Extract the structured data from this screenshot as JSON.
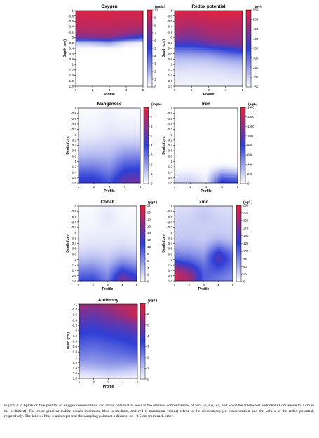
{
  "colors": {
    "low": "#ffffff",
    "mid": "#2f3fd6",
    "high": "#e8213a"
  },
  "caption": "Figure 3. 2D-plots of five profiles of oxygen concentration and redox potential as well as the element concentrations of Mn, Fe, Co, Zn, and Sb of the freshwater sediment (1 cm above to 2 cm in the sediment). The color gradient (white equals minimum, blue is medium, and red is maximum values) refers to the element/oxygen concentration and the values of the redox potential, respectively. The labels of the x-axis represent the sampling points at a distance of ~0.5 cm from each other.",
  "chart_data": [
    {
      "type": "heatmap",
      "title": "Oxygen",
      "xlabel": "Profile",
      "ylabel": "Depth (cm)",
      "unit": "(mg/L)",
      "x": [
        1,
        2,
        3,
        4,
        5
      ],
      "y": [
        -1,
        -0.8,
        -0.6,
        -0.4,
        -0.2,
        0,
        0.2,
        0.4,
        0.6,
        0.8,
        1,
        1.2,
        1.4,
        1.6,
        1.8
      ],
      "xlim": [
        1,
        5
      ],
      "ylim": [
        -1,
        1.8
      ],
      "colorbar_ticks": [
        0,
        1,
        2,
        3,
        4,
        5,
        6,
        7,
        8,
        9,
        10
      ],
      "clim": [
        0,
        10
      ],
      "values": [
        [
          9.5,
          9.6,
          9.5,
          9.4,
          9.5
        ],
        [
          9.3,
          9.4,
          9.4,
          9.2,
          9.3
        ],
        [
          9,
          9.1,
          9.1,
          9,
          9
        ],
        [
          8.8,
          8.8,
          8.8,
          8.6,
          8.5
        ],
        [
          8.2,
          8.3,
          8.5,
          8,
          7.6
        ],
        [
          7,
          7.2,
          7.4,
          6.2,
          4.6
        ],
        [
          1.5,
          1.8,
          2.5,
          0.8,
          0.4
        ],
        [
          0.1,
          0.1,
          0.2,
          0,
          0
        ],
        [
          0,
          0,
          0,
          0,
          0
        ],
        [
          0,
          0,
          0,
          0,
          0
        ],
        [
          0,
          0,
          0,
          0,
          0
        ],
        [
          0,
          0,
          0,
          0,
          0
        ],
        [
          0,
          0,
          0,
          0,
          0
        ],
        [
          0,
          0,
          0,
          0,
          0
        ],
        [
          0,
          0,
          0,
          0,
          0
        ]
      ]
    },
    {
      "type": "heatmap",
      "title": "Redox potential",
      "xlabel": "Profile",
      "ylabel": "Depth (cm)",
      "unit": "(mV)",
      "x": [
        1,
        2,
        3,
        4,
        5
      ],
      "y": [
        -1,
        -0.8,
        -0.6,
        -0.4,
        -0.2,
        0,
        0.2,
        0.4,
        0.6,
        0.8,
        1,
        1.2,
        1.4,
        1.6,
        1.8
      ],
      "xlim": [
        1,
        5
      ],
      "ylim": [
        -1,
        1.8
      ],
      "colorbar_ticks": [
        150,
        200,
        250,
        300,
        350,
        400,
        450,
        500,
        550
      ],
      "clim": [
        150,
        550
      ],
      "values": [
        [
          540,
          535,
          540,
          545,
          540
        ],
        [
          520,
          515,
          525,
          530,
          525
        ],
        [
          505,
          500,
          510,
          510,
          505
        ],
        [
          490,
          480,
          495,
          500,
          495
        ],
        [
          470,
          455,
          480,
          485,
          480
        ],
        [
          440,
          430,
          460,
          470,
          465
        ],
        [
          390,
          380,
          420,
          440,
          450
        ],
        [
          320,
          320,
          340,
          360,
          390
        ],
        [
          260,
          260,
          270,
          300,
          320
        ],
        [
          220,
          220,
          225,
          245,
          260
        ],
        [
          200,
          195,
          200,
          210,
          225
        ],
        [
          185,
          182,
          185,
          190,
          200
        ],
        [
          175,
          172,
          175,
          178,
          185
        ],
        [
          168,
          166,
          168,
          170,
          175
        ],
        [
          162,
          160,
          162,
          165,
          168
        ]
      ]
    },
    {
      "type": "heatmap",
      "title": "Manganese",
      "xlabel": "Profile",
      "ylabel": "Depth (cm)",
      "unit": "(mg/L)",
      "x": [
        1,
        2,
        3,
        4,
        5
      ],
      "y": [
        -1,
        -0.8,
        -0.6,
        -0.4,
        -0.2,
        0,
        0.2,
        0.4,
        0.6,
        0.8,
        1,
        1.2,
        1.4,
        1.6,
        1.8
      ],
      "xlim": [
        1,
        5
      ],
      "ylim": [
        -1,
        1.8
      ],
      "colorbar_ticks": [
        0,
        1,
        2,
        3,
        4,
        5,
        6,
        7,
        8
      ],
      "clim": [
        0,
        8
      ],
      "values": [
        [
          0.1,
          0.1,
          0.2,
          0.1,
          0.1
        ],
        [
          0.1,
          0.1,
          0.3,
          0.1,
          0.1
        ],
        [
          0.2,
          0.2,
          0.3,
          0.2,
          0.2
        ],
        [
          0.2,
          0.2,
          0.4,
          0.3,
          0.3
        ],
        [
          0.3,
          0.3,
          0.5,
          0.4,
          0.4
        ],
        [
          0.4,
          0.4,
          0.6,
          0.6,
          0.6
        ],
        [
          0.6,
          0.6,
          0.8,
          0.9,
          0.9
        ],
        [
          0.8,
          0.9,
          1,
          1.3,
          1.3
        ],
        [
          1.1,
          1.2,
          1.2,
          1.8,
          1.9
        ],
        [
          1.5,
          1.6,
          1.5,
          2.4,
          2.5
        ],
        [
          2,
          2.1,
          1.9,
          3,
          3.1
        ],
        [
          2.6,
          2.7,
          2.3,
          3.6,
          3.7
        ],
        [
          3.3,
          3.3,
          2.7,
          4.2,
          4.3
        ],
        [
          3.9,
          3.9,
          3.2,
          4.8,
          5
        ],
        [
          4.4,
          4.4,
          3.6,
          5.2,
          5.5
        ]
      ]
    },
    {
      "type": "heatmap",
      "title": "Iron",
      "xlabel": "Profile",
      "ylabel": "Depth (cm)",
      "unit": "(µg/L)",
      "x": [
        1,
        2,
        3,
        4,
        5
      ],
      "y": [
        -1,
        -0.8,
        -0.6,
        -0.4,
        -0.2,
        0,
        0.2,
        0.4,
        0.6,
        0.8,
        1,
        1.2,
        1.4,
        1.6,
        1.8
      ],
      "xlim": [
        1,
        5
      ],
      "ylim": [
        -1,
        1.8
      ],
      "colorbar_ticks": [
        0,
        200,
        400,
        600,
        800,
        1000,
        1200,
        1400,
        1600
      ],
      "clim": [
        0,
        1600
      ],
      "values": [
        [
          0,
          0,
          0,
          0,
          0
        ],
        [
          0,
          0,
          0,
          0,
          0
        ],
        [
          0,
          0,
          0,
          0,
          0
        ],
        [
          0,
          0,
          0,
          0,
          0
        ],
        [
          0,
          0,
          0,
          0,
          0
        ],
        [
          0,
          0,
          0,
          0,
          0
        ],
        [
          0,
          0,
          0,
          0,
          0
        ],
        [
          0,
          0,
          0,
          0,
          0
        ],
        [
          0,
          0,
          0,
          0,
          0
        ],
        [
          0,
          0,
          0,
          0,
          0
        ],
        [
          0,
          0,
          0,
          0,
          0
        ],
        [
          5,
          10,
          5,
          80,
          40
        ],
        [
          40,
          60,
          20,
          350,
          250
        ],
        [
          120,
          140,
          60,
          650,
          560
        ],
        [
          200,
          220,
          100,
          880,
          780
        ]
      ]
    },
    {
      "type": "heatmap",
      "title": "Cobalt",
      "xlabel": "Profile",
      "ylabel": "Depth (cm)",
      "unit": "(µg/L)",
      "x": [
        1,
        2,
        3,
        4,
        5
      ],
      "y": [
        -1,
        -0.8,
        -0.6,
        -0.4,
        -0.2,
        0,
        0.2,
        0.4,
        0.6,
        0.8,
        1,
        1.2,
        1.4,
        1.6,
        1.8
      ],
      "xlim": [
        1,
        5
      ],
      "ylim": [
        -1,
        1.8
      ],
      "colorbar_ticks": [
        0,
        2,
        4,
        6,
        8,
        10,
        12,
        14,
        16,
        18,
        20,
        22
      ],
      "clim": [
        0,
        22
      ],
      "values": [
        [
          0.2,
          0.3,
          0.8,
          0.3,
          0.2
        ],
        [
          0.3,
          0.4,
          1.2,
          0.4,
          0.3
        ],
        [
          0.4,
          0.5,
          1.4,
          0.5,
          0.4
        ],
        [
          0.5,
          0.6,
          1.2,
          0.6,
          0.5
        ],
        [
          0.6,
          0.7,
          1,
          0.8,
          0.6
        ],
        [
          0.8,
          0.9,
          1,
          1,
          0.8
        ],
        [
          1,
          1.2,
          1.2,
          1.3,
          1
        ],
        [
          1.3,
          1.6,
          1.5,
          1.8,
          1.4
        ],
        [
          1.8,
          2.2,
          2,
          2.6,
          2
        ],
        [
          2.6,
          3,
          2.6,
          3.8,
          3
        ],
        [
          3.8,
          4.2,
          3.4,
          5.6,
          4.4
        ],
        [
          5.4,
          5.8,
          4.4,
          8,
          6.2
        ],
        [
          7.2,
          7.6,
          5.6,
          11,
          8.4
        ],
        [
          9,
          9.4,
          6.6,
          14,
          10.5
        ],
        [
          10.5,
          10.8,
          7.4,
          16,
          12
        ]
      ]
    },
    {
      "type": "heatmap",
      "title": "Zinc",
      "xlabel": "Profile",
      "ylabel": "Depth (cm)",
      "unit": "(µg/L)",
      "x": [
        1,
        2,
        3,
        4,
        5
      ],
      "y": [
        -1,
        -0.8,
        -0.6,
        -0.4,
        -0.2,
        0,
        0.2,
        0.4,
        0.6,
        0.8,
        1,
        1.2,
        1.4,
        1.6,
        1.8
      ],
      "xlim": [
        1,
        5
      ],
      "ylim": [
        -1,
        1.8
      ],
      "colorbar_ticks": [
        0,
        25,
        50,
        75,
        100,
        125,
        150,
        175,
        200,
        225,
        250
      ],
      "clim": [
        0,
        250
      ],
      "values": [
        [
          20,
          22,
          30,
          22,
          20
        ],
        [
          22,
          25,
          34,
          25,
          22
        ],
        [
          25,
          28,
          36,
          28,
          25
        ],
        [
          28,
          30,
          34,
          30,
          28
        ],
        [
          30,
          32,
          32,
          32,
          30
        ],
        [
          32,
          34,
          32,
          35,
          32
        ],
        [
          36,
          38,
          34,
          45,
          36
        ],
        [
          45,
          46,
          40,
          70,
          50
        ],
        [
          60,
          58,
          50,
          105,
          70
        ],
        [
          80,
          75,
          62,
          140,
          90
        ],
        [
          110,
          98,
          76,
          150,
          100
        ],
        [
          160,
          130,
          90,
          130,
          95
        ],
        [
          210,
          170,
          100,
          110,
          85
        ],
        [
          230,
          200,
          105,
          95,
          75
        ],
        [
          220,
          205,
          100,
          85,
          70
        ]
      ]
    },
    {
      "type": "heatmap",
      "title": "Antimony",
      "xlabel": "Profile",
      "ylabel": "Depth (cm)",
      "unit": "(µg/L)",
      "x": [
        1,
        2,
        3,
        4,
        5
      ],
      "y": [
        -1,
        -0.8,
        -0.6,
        -0.4,
        -0.2,
        0,
        0.2,
        0.4,
        0.6,
        0.8,
        1,
        1.2,
        1.4,
        1.6,
        1.8
      ],
      "xlim": [
        1,
        5
      ],
      "ylim": [
        -1,
        1.8
      ],
      "colorbar_ticks": [
        0,
        1,
        2,
        3,
        4,
        5,
        6,
        7
      ],
      "clim": [
        0,
        7
      ],
      "values": [
        [
          5.6,
          5.4,
          5.8,
          6.2,
          6
        ],
        [
          5.2,
          5,
          5.4,
          6,
          6.4
        ],
        [
          4.8,
          4.6,
          5,
          5.6,
          6.6
        ],
        [
          4.4,
          4.2,
          4.6,
          5,
          5.8
        ],
        [
          4,
          3.8,
          4.2,
          4.4,
          5
        ],
        [
          3.7,
          3.5,
          3.8,
          4,
          4.4
        ],
        [
          3.4,
          3.3,
          3.5,
          3.7,
          4
        ],
        [
          3.1,
          3,
          3.2,
          3.4,
          3.7
        ],
        [
          2.8,
          2.7,
          2.9,
          3.1,
          3.4
        ],
        [
          2.5,
          2.4,
          2.6,
          2.8,
          3
        ],
        [
          2.2,
          2.1,
          2.3,
          2.4,
          2.6
        ],
        [
          1.8,
          1.8,
          2,
          2,
          2
        ],
        [
          1.2,
          1.3,
          1.5,
          1.4,
          1.2
        ],
        [
          0.6,
          0.7,
          0.9,
          0.8,
          0.6
        ],
        [
          0.2,
          0.3,
          0.4,
          0.3,
          0.2
        ]
      ]
    }
  ]
}
